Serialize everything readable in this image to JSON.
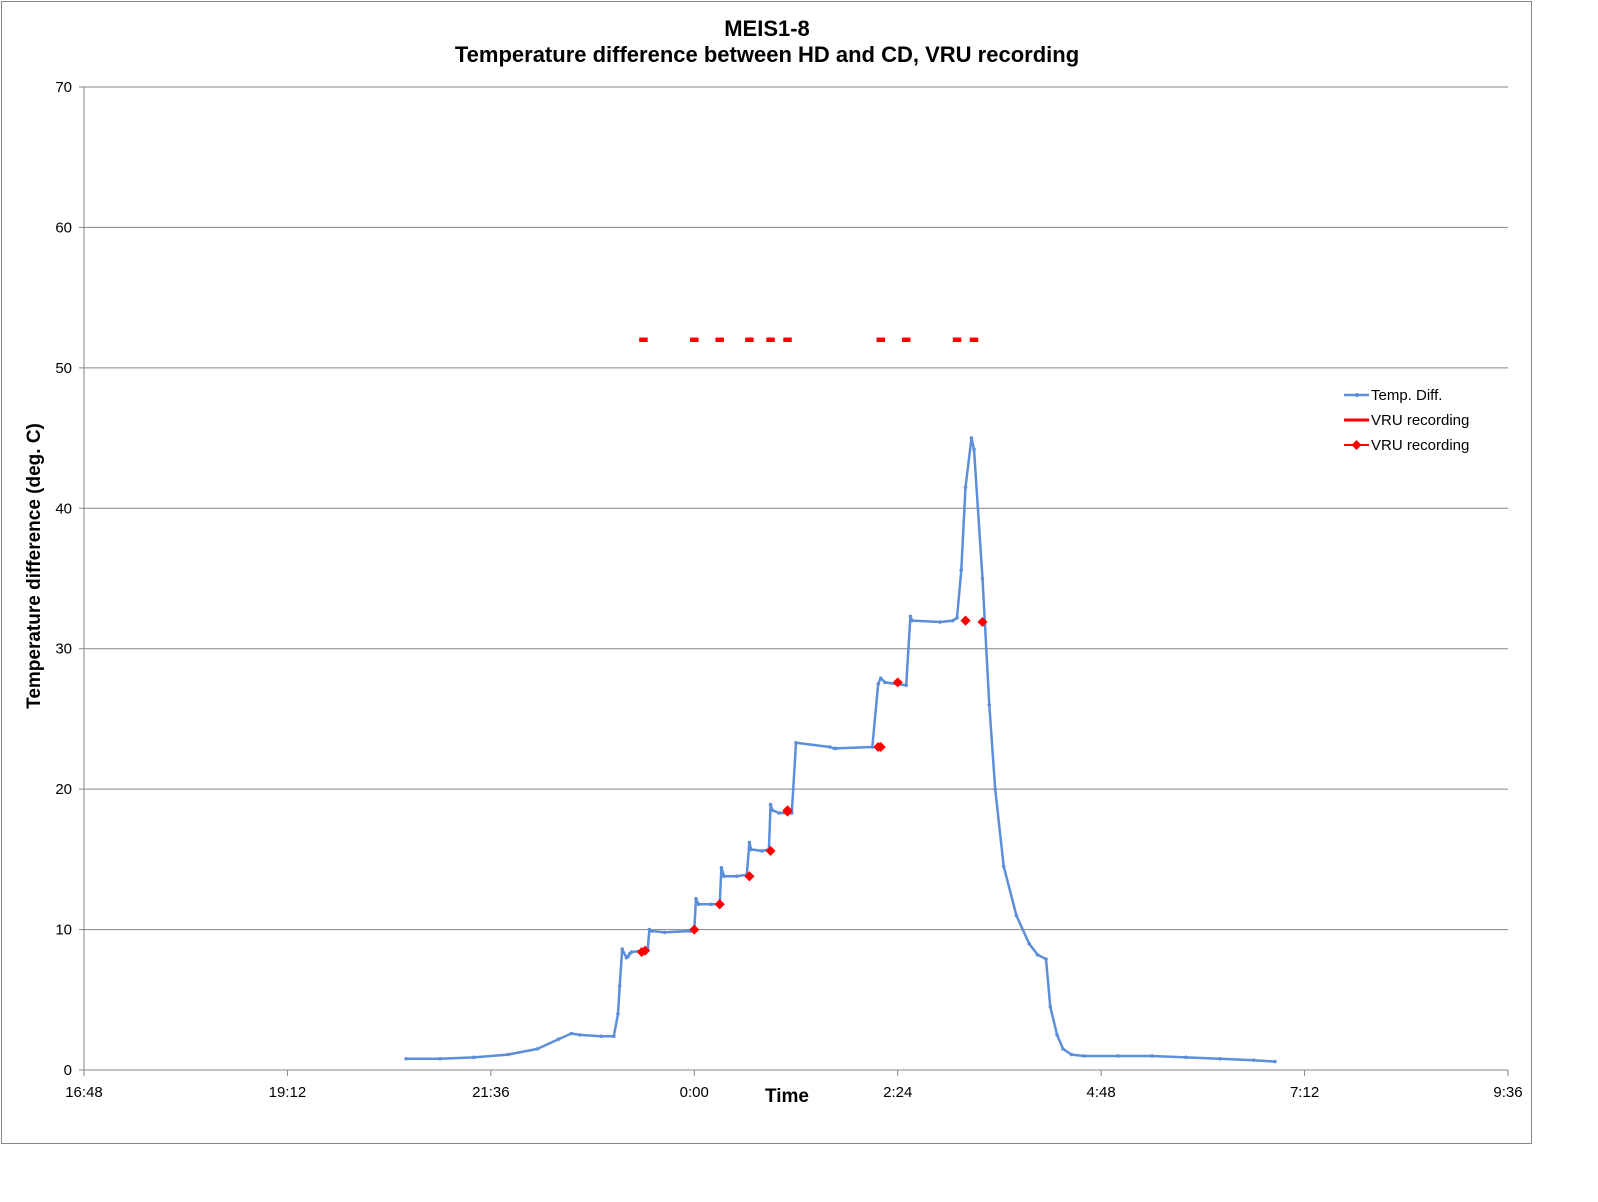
{
  "chart_data": {
    "type": "line",
    "title_line1": "MEIS1-8",
    "title_line2": "Temperature difference between HD and CD, VRU recording",
    "xlabel": "Time",
    "ylabel": "Temperature difference (deg. C)",
    "x_ticks": [
      "16:48",
      "19:12",
      "21:36",
      "0:00",
      "2:24",
      "4:48",
      "7:12",
      "9:36"
    ],
    "x_tick_hours": [
      -7.2,
      -4.8,
      -2.4,
      0,
      2.4,
      4.8,
      7.2,
      9.6
    ],
    "xlim_hours": [
      -7.2,
      9.6
    ],
    "y_ticks": [
      0,
      10,
      20,
      30,
      40,
      50,
      60,
      70
    ],
    "ylim": [
      0,
      70
    ],
    "grid": "horizontal",
    "legend_position": "right",
    "legend": [
      "Temp. Diff.",
      "VRU recording",
      "VRU recording"
    ],
    "colors": {
      "temp_diff": "#5b8fd9",
      "vru": "#ff0000"
    },
    "series": [
      {
        "name": "Temp. Diff.",
        "x_hours": [
          -3.4,
          -3.0,
          -2.6,
          -2.2,
          -1.85,
          -1.6,
          -1.45,
          -1.35,
          -1.1,
          -0.95,
          -0.9,
          -0.88,
          -0.85,
          -0.8,
          -0.78,
          -0.76,
          -0.74,
          -0.6,
          -0.55,
          -0.53,
          -0.5,
          -0.35,
          -0.05,
          0.0,
          0.02,
          0.05,
          0.2,
          0.3,
          0.32,
          0.35,
          0.5,
          0.62,
          0.65,
          0.67,
          0.8,
          0.88,
          0.9,
          0.92,
          1.0,
          1.12,
          1.15,
          1.2,
          1.6,
          1.65,
          1.67,
          2.1,
          2.17,
          2.2,
          2.25,
          2.5,
          2.55,
          2.57,
          2.9,
          3.05,
          3.1,
          3.15,
          3.2,
          3.27,
          3.3,
          3.4,
          3.48,
          3.55,
          3.65,
          3.8,
          3.95,
          4.05,
          4.15,
          4.2,
          4.28,
          4.35,
          4.45,
          4.6,
          5.0,
          5.4,
          5.8,
          6.2,
          6.6,
          6.85
        ],
        "values": [
          0.8,
          0.8,
          0.9,
          1.1,
          1.5,
          2.2,
          2.6,
          2.5,
          2.4,
          2.4,
          4.0,
          6.0,
          8.6,
          8.0,
          8.1,
          8.3,
          8.4,
          8.5,
          8.6,
          10.0,
          9.9,
          9.8,
          9.9,
          10.0,
          12.2,
          11.8,
          11.8,
          11.8,
          14.4,
          13.8,
          13.8,
          13.9,
          16.2,
          15.7,
          15.6,
          15.7,
          18.9,
          18.5,
          18.3,
          18.3,
          18.3,
          23.3,
          23.0,
          22.9,
          22.9,
          23.0,
          27.5,
          27.9,
          27.6,
          27.4,
          32.3,
          32.0,
          31.9,
          32.0,
          32.2,
          35.6,
          41.5,
          45.0,
          44.2,
          35.0,
          26.0,
          20.0,
          14.5,
          11.0,
          9.0,
          8.2,
          7.9,
          4.5,
          2.5,
          1.5,
          1.1,
          1.0,
          1.0,
          1.0,
          0.9,
          0.8,
          0.7,
          0.6
        ]
      },
      {
        "name": "VRU recording",
        "x_hours": [
          -0.65,
          -0.55,
          -0.05,
          0.05,
          0.25,
          0.35,
          0.6,
          0.7,
          0.85,
          0.95,
          1.05,
          1.15,
          2.15,
          2.25,
          2.45,
          2.55,
          3.05,
          3.15,
          3.25,
          3.35
        ],
        "values": [
          52,
          52,
          52,
          52,
          52,
          52,
          52,
          52,
          52,
          52,
          52,
          52,
          52,
          52,
          52,
          52,
          52,
          52,
          52,
          52
        ]
      },
      {
        "name": "VRU recording",
        "x_hours": [
          -0.62,
          -0.58,
          0.0,
          0.3,
          0.3,
          0.65,
          0.65,
          0.9,
          1.1,
          1.1,
          2.17,
          2.2,
          2.4,
          3.2,
          3.2,
          3.4
        ],
        "values": [
          8.4,
          8.5,
          10.0,
          11.8,
          11.8,
          13.8,
          13.8,
          15.6,
          18.5,
          18.4,
          23.0,
          23.0,
          27.6,
          32.0,
          32.0,
          31.9
        ]
      }
    ]
  }
}
